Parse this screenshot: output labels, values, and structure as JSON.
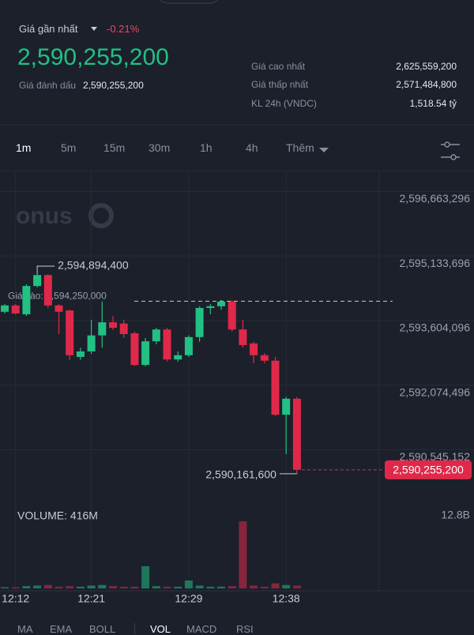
{
  "header": {
    "last_price_label": "Giá gần nhất",
    "change": "-0.21%",
    "last_price": "2,590,255,200",
    "mark_price_label": "Giá đánh dấu",
    "mark_price": "2,590,255,200",
    "stats": [
      {
        "label": "Giá cao nhất",
        "value": "2,625,559,200"
      },
      {
        "label": "Giá thấp nhất",
        "value": "2,571,484,800"
      },
      {
        "label": "KL 24h (VNDC)",
        "value": "1,518.54 tỷ"
      }
    ]
  },
  "timeframes": [
    "1m",
    "5m",
    "15m",
    "30m",
    "1h",
    "4h"
  ],
  "more": "Thêm",
  "watermark": "onus",
  "chart_data": {
    "type": "candlestick",
    "categories": [
      null,
      "12:12",
      null,
      null,
      null,
      null,
      null,
      null,
      "12:21",
      null,
      null,
      null,
      null,
      null,
      null,
      null,
      null,
      "12:29",
      null,
      null,
      null,
      null,
      null,
      null,
      null,
      null,
      "12:38",
      null
    ],
    "open": [
      2594000000,
      2594150000,
      2593940000,
      2594610000,
      2594870000,
      2594150000,
      2594030000,
      2592930000,
      2593060000,
      2593440000,
      2593750000,
      2593720000,
      2593490000,
      2592740000,
      2593300000,
      2593580000,
      2592870000,
      2592970000,
      2593400000,
      2594090000,
      2594130000,
      2594240000,
      2593580000,
      2593250000,
      2592970000,
      2592840000,
      2591560000,
      2591940000
    ],
    "high": [
      2594180000,
      2594180000,
      2594650000,
      2594894400,
      2594880000,
      2594180000,
      2594050000,
      2593150000,
      2593810000,
      2594240000,
      2593900000,
      2593810000,
      2593530000,
      2593380000,
      2593620000,
      2593620000,
      2593060000,
      2593440000,
      2594130000,
      2594180000,
      2594280000,
      2594280000,
      2593810000,
      2593290000,
      2593020000,
      2592930000,
      2591980000,
      2591980000
    ],
    "low": [
      2593960000,
      2593940000,
      2593900000,
      2594580000,
      2594090000,
      2593470000,
      2592860000,
      2592860000,
      2593000000,
      2593150000,
      2593570000,
      2593380000,
      2592710000,
      2592710000,
      2593230000,
      2592820000,
      2592820000,
      2592930000,
      2593290000,
      2593940000,
      2594050000,
      2593530000,
      2593150000,
      2592780000,
      2592780000,
      2591530000,
      2590630000,
      2590161600
    ],
    "close": [
      2594150000,
      2593960000,
      2594610000,
      2594870000,
      2594150000,
      2594000000,
      2592970000,
      2593060000,
      2593440000,
      2593750000,
      2593620000,
      2593470000,
      2592740000,
      2593300000,
      2593580000,
      2592870000,
      2592970000,
      2593400000,
      2594090000,
      2594130000,
      2594240000,
      2593580000,
      2593210000,
      2592970000,
      2592840000,
      2591560000,
      2591940000,
      2590255200
    ],
    "up_color": "#22c083",
    "down_color": "#e0294a",
    "ylim": [
      2589410000,
      2597270000
    ],
    "yticks": [
      {
        "value": 2596663296,
        "label": "2,596,663,296"
      },
      {
        "value": 2595133696,
        "label": "2,595,133,696"
      },
      {
        "value": 2593604096,
        "label": "2,593,604,096"
      },
      {
        "value": 2592074496,
        "label": "2,592,074,496"
      },
      {
        "value": 2590545152,
        "label": "2,590,545,152"
      }
    ],
    "grid": true,
    "high_label": "2,594,894,400",
    "low_label": "2,590,161,600",
    "last_price_label": "2,590,255,200",
    "entry": {
      "label": "Giá vào: 2,594,250,000",
      "value": 2594250000
    },
    "volume": {
      "label": "VOLUME: 416M",
      "values": [
        0.2,
        0.2,
        0.4,
        0.5,
        0.6,
        0.3,
        0.4,
        0.3,
        0.5,
        0.6,
        0.4,
        0.3,
        0.3,
        3.9,
        0.4,
        0.3,
        0.3,
        1.4,
        0.5,
        0.3,
        0.3,
        0.4,
        11.8,
        0.5,
        0.3,
        0.9,
        0.6,
        0.5
      ],
      "ylim": [
        0,
        13.2
      ],
      "yticks": [
        {
          "value": 12.8,
          "label": "12.8B"
        }
      ]
    }
  },
  "indicator_tabs": {
    "main": [
      "MA",
      "EMA",
      "BOLL"
    ],
    "sub": [
      "VOL",
      "MACD",
      "RSI"
    ]
  }
}
